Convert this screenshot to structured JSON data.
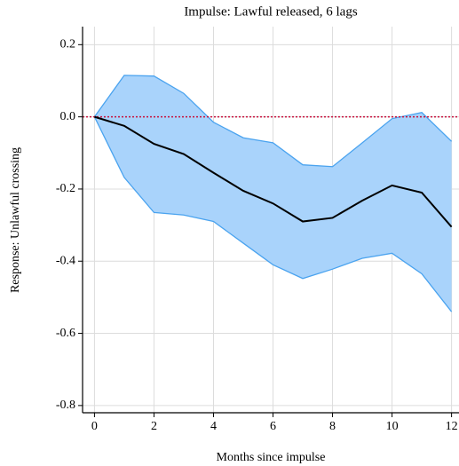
{
  "chart_data": {
    "type": "line",
    "title": "Impulse: Lawful released, 6 lags",
    "x_label": "Months since impulse",
    "y_label": "Response: Unlawful crossing",
    "x": [
      0,
      1,
      2,
      3,
      4,
      5,
      6,
      7,
      8,
      9,
      10,
      11,
      12
    ],
    "values": [
      0,
      -0.025,
      -0.075,
      -0.103,
      -0.155,
      -0.205,
      -0.24,
      -0.29,
      -0.28,
      -0.232,
      -0.19,
      -0.21,
      -0.305
    ],
    "upper": [
      0,
      0.115,
      0.113,
      0.065,
      -0.015,
      -0.058,
      -0.072,
      -0.133,
      -0.138,
      -0.072,
      -0.005,
      0.012,
      -0.068
    ],
    "lower": [
      0,
      -0.168,
      -0.265,
      -0.272,
      -0.29,
      -0.35,
      -0.41,
      -0.448,
      -0.422,
      -0.392,
      -0.378,
      -0.435,
      -0.54
    ],
    "color": "#000000",
    "band_color": "#a9d3fb",
    "band_edge_color": "#4aa3ef",
    "reference_line": {
      "value": 0,
      "color": "#c8103c"
    },
    "xlim": [
      -0.4,
      12.25
    ],
    "ylim": [
      -0.82,
      0.25
    ],
    "xticks": [
      0,
      2,
      4,
      6,
      8,
      10,
      12
    ],
    "yticks": [
      {
        "value": 0.2,
        "label": "0.2"
      },
      {
        "value": 0,
        "label": "0.0"
      },
      {
        "value": -0.2,
        "label": "-0.2"
      },
      {
        "value": -0.4,
        "label": "-0.4"
      },
      {
        "value": -0.6,
        "label": "-0.6"
      },
      {
        "value": -0.8,
        "label": "-0.8"
      }
    ],
    "grid": true
  }
}
